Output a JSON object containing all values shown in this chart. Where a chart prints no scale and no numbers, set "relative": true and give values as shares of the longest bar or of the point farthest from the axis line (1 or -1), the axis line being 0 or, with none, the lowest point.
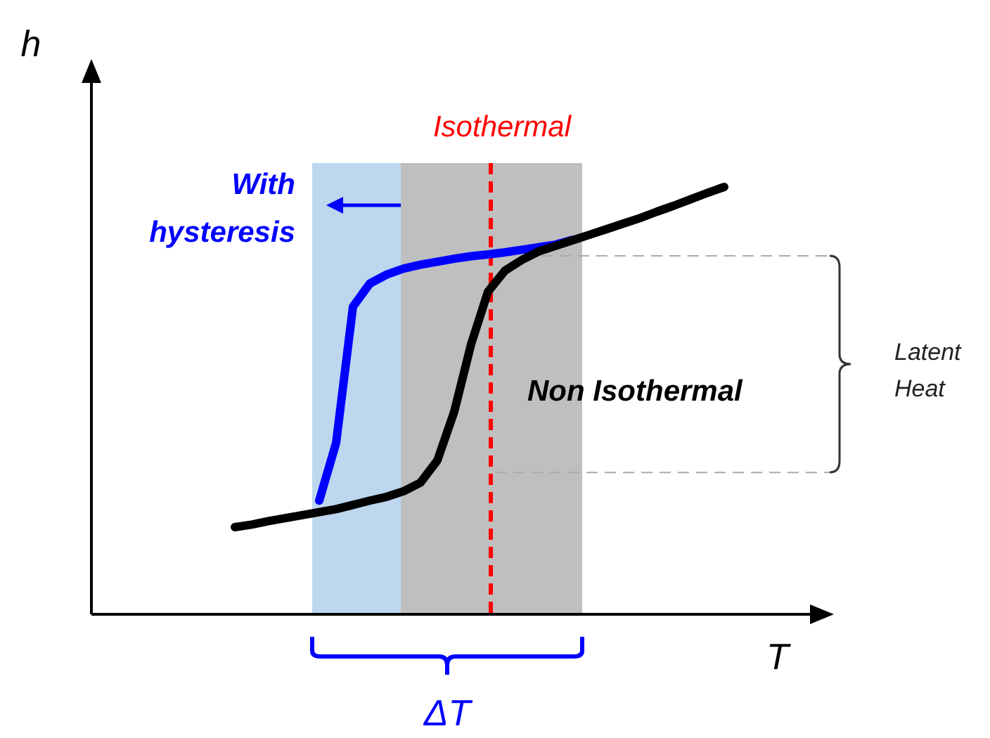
{
  "chart_data": {
    "type": "line",
    "xlabel": "T",
    "relative": true,
    "line_style": "solid",
    "ref_lines": [
      {
        "axis": "y",
        "value": 0.839,
        "color": "#aaaaaa",
        "line_style": "dashed"
      },
      {
        "axis": "y",
        "value": 0.332,
        "color": "#aaaaaa",
        "line_style": "dashed"
      }
    ],
    "categories": [
      null,
      null,
      null,
      null,
      null,
      null,
      null,
      null,
      null,
      null,
      null,
      null,
      null,
      null,
      null,
      null,
      null,
      null,
      null,
      null,
      null,
      null,
      null,
      null,
      null,
      null,
      null,
      null,
      null,
      null
    ],
    "series": [
      {
        "name": "Non Isothermal",
        "color": "#000000",
        "values": [
          0.204,
          0.21,
          0.218,
          0.225,
          0.232,
          0.239,
          0.246,
          0.256,
          0.266,
          0.275,
          0.288,
          0.308,
          0.36,
          0.474,
          0.632,
          0.755,
          0.804,
          0.829,
          0.849,
          0.862,
          0.875,
          0.888,
          0.901,
          0.914,
          0.927,
          0.942,
          0.956,
          0.971,
          0.986,
          1
        ]
      },
      {
        "name": "With hysteresis",
        "color": "#0000ff",
        "values": [
          null,
          null,
          null,
          null,
          null,
          0.266,
          0.401,
          0.72,
          0.774,
          0.795,
          0.809,
          0.818,
          0.825,
          0.832,
          0.838,
          0.842,
          0.847,
          0.853,
          0.859,
          0.865,
          0.876,
          null,
          null,
          null,
          null,
          null,
          null,
          null,
          null,
          null
        ]
      }
    ],
    "annotations": [
      "Isothermal",
      "Latent Heat",
      "ΔT",
      "h"
    ]
  }
}
